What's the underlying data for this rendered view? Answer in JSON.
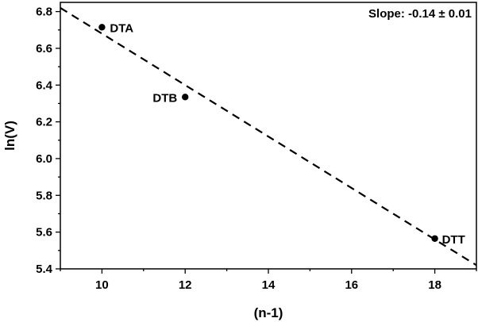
{
  "chart_data": {
    "type": "scatter",
    "title": "",
    "xlabel": "(n-1)",
    "ylabel": "ln(V)",
    "xlim": [
      9,
      19
    ],
    "ylim": [
      5.4,
      6.85
    ],
    "xticks": [
      10,
      12,
      14,
      16,
      18
    ],
    "xtick_labels": [
      "10",
      "12",
      "14",
      "16",
      "18"
    ],
    "yticks": [
      5.4,
      5.6,
      5.8,
      6.0,
      6.2,
      6.4,
      6.6,
      6.8
    ],
    "ytick_labels": [
      "5.4",
      "5.6",
      "5.8",
      "6.0",
      "6.2",
      "6.4",
      "6.6",
      "6.8"
    ],
    "grid": false,
    "points": [
      {
        "label": "DTA",
        "x": 10,
        "y": 6.715
      },
      {
        "label": "DTB",
        "x": 12,
        "y": 6.335
      },
      {
        "label": "DTT",
        "x": 18,
        "y": 5.565
      }
    ],
    "fit_line": {
      "style": "dashed",
      "x": [
        9,
        19
      ],
      "y": [
        6.82,
        5.42
      ]
    },
    "annotation": "Slope: -0.14 ± 0.01",
    "colors": {
      "marker": "#000000",
      "line": "#000000",
      "axis": "#000000"
    }
  }
}
